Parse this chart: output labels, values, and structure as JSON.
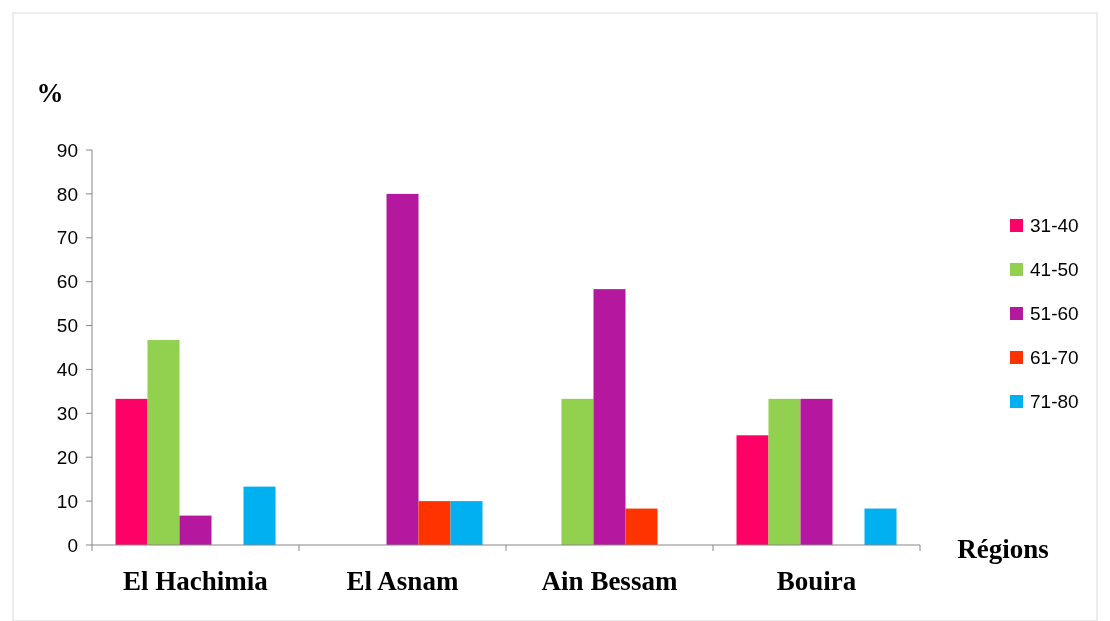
{
  "chart_data": {
    "type": "bar",
    "ylabel": "%",
    "xlabel": "Régions",
    "categories": [
      "El Hachimia",
      "El Asnam",
      "Ain Bessam",
      "Bouira"
    ],
    "series": [
      {
        "name": "31-40",
        "color": "#ff0066",
        "values": [
          33.3,
          0,
          0,
          25
        ]
      },
      {
        "name": "41-50",
        "color": "#92d050",
        "values": [
          46.7,
          0,
          33.3,
          33.3
        ]
      },
      {
        "name": "51-60",
        "color": "#b5179e",
        "values": [
          6.7,
          80,
          58.3,
          33.3
        ]
      },
      {
        "name": "61-70",
        "color": "#ff3300",
        "values": [
          0,
          10,
          8.3,
          0
        ]
      },
      {
        "name": "71-80",
        "color": "#00b0f0",
        "values": [
          13.3,
          10,
          0,
          8.3
        ]
      }
    ],
    "ylim": [
      0,
      90
    ],
    "yticks": [
      0,
      10,
      20,
      30,
      40,
      50,
      60,
      70,
      80,
      90
    ],
    "grid": false,
    "legend": "right"
  }
}
